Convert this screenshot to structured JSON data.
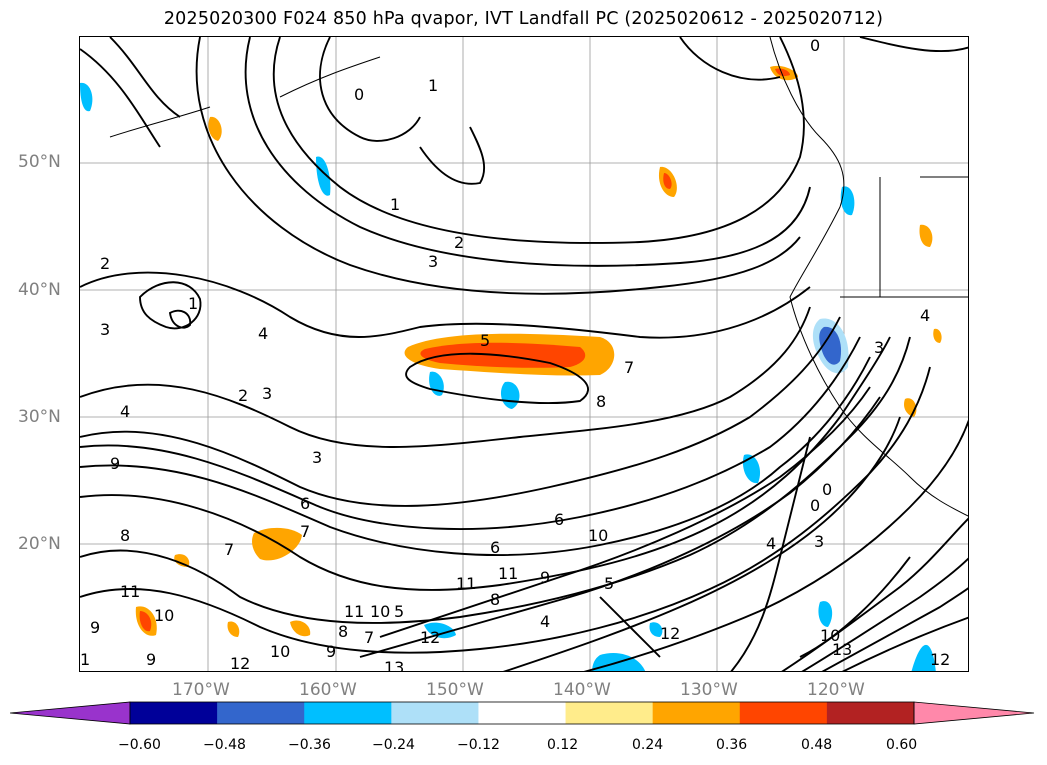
{
  "title": "2025020300 F024 850 hPa qvapor, IVT Landfall PC (2025020612 - 2025020712)",
  "lat_labels": [
    "50°N",
    "40°N",
    "30°N",
    "20°N"
  ],
  "lon_labels": [
    "170°W",
    "160°W",
    "150°W",
    "140°W",
    "130°W",
    "120°W"
  ],
  "colorbar": {
    "colors": [
      "#9933cc",
      "#000099",
      "#3366cc",
      "#00bfff",
      "#aee0f8",
      "#ffffff",
      "#ffec8b",
      "#ffa500",
      "#ff4500",
      "#b22222",
      "#ff88aa"
    ],
    "tick_labels": [
      "−0.60",
      "−0.48",
      "−0.36",
      "−0.24",
      "−0.12",
      "0.12",
      "0.24",
      "0.36",
      "0.48",
      "0.60"
    ]
  },
  "contour_labels": [
    "0",
    "1",
    "2",
    "3",
    "4",
    "5",
    "6",
    "7",
    "8",
    "9",
    "10",
    "11",
    "12",
    "13"
  ]
}
